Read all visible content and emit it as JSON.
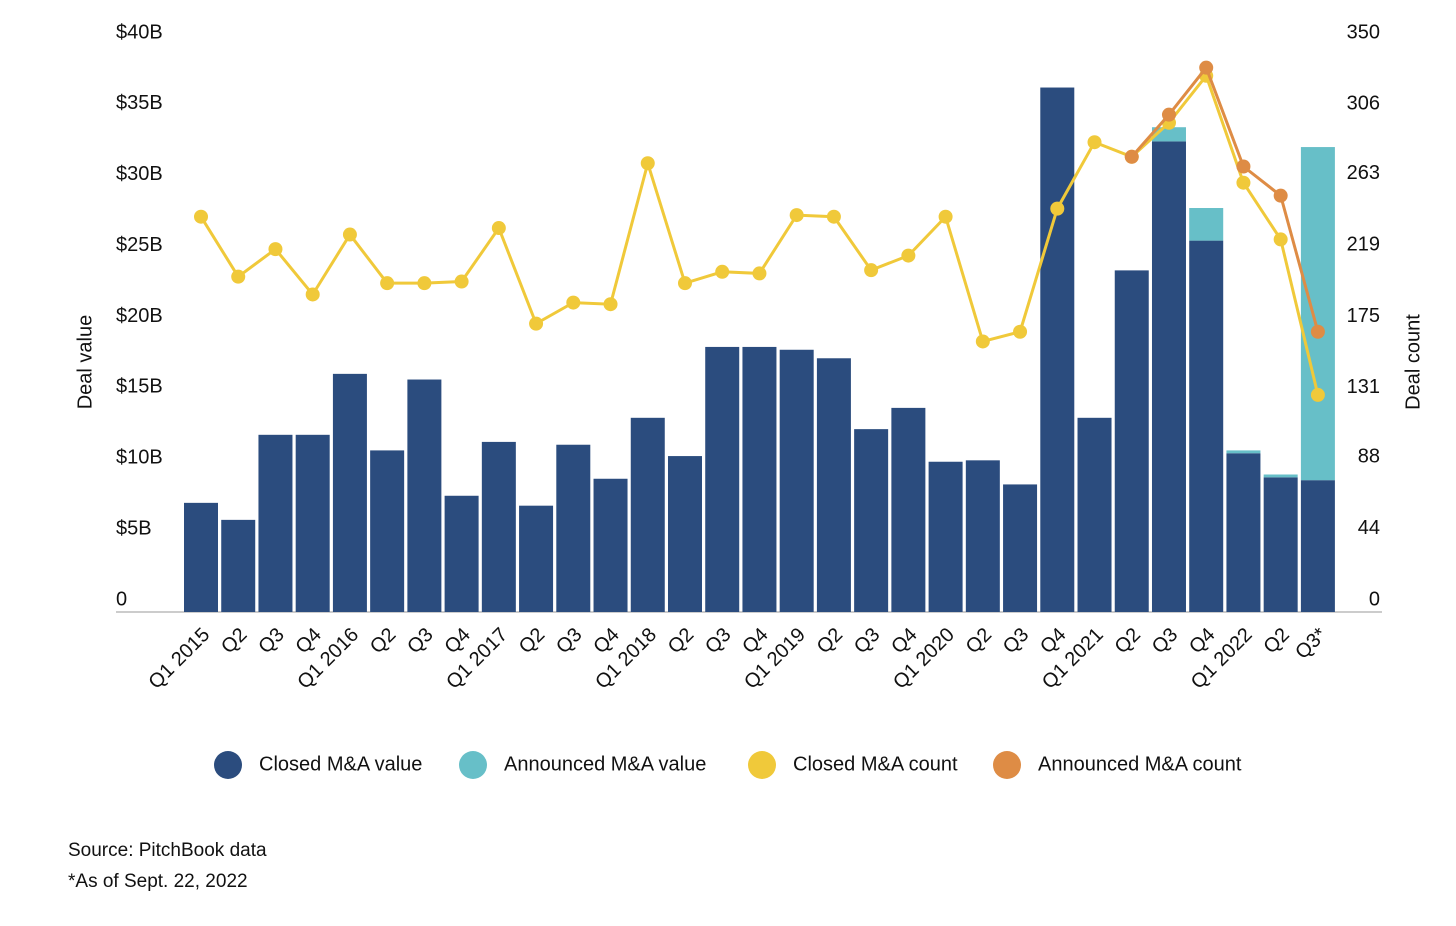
{
  "chart_data": {
    "type": "bar-line",
    "categories": [
      "Q1 2015",
      "Q2",
      "Q3",
      "Q4",
      "Q1 2016",
      "Q2",
      "Q3",
      "Q4",
      "Q1 2017",
      "Q2",
      "Q3",
      "Q4",
      "Q1 2018",
      "Q2",
      "Q3",
      "Q4",
      "Q1 2019",
      "Q2",
      "Q3",
      "Q4",
      "Q1 2020",
      "Q2",
      "Q3",
      "Q4",
      "Q1 2021",
      "Q2",
      "Q3",
      "Q4",
      "Q1 2022",
      "Q2",
      "Q3*"
    ],
    "series": [
      {
        "name": "Closed M&A value",
        "type": "bar",
        "color": "#2b4c7e",
        "values": [
          7.7,
          6.5,
          12.5,
          12.5,
          16.8,
          11.4,
          16.4,
          8.2,
          12.0,
          7.5,
          11.8,
          9.4,
          13.7,
          11.0,
          18.7,
          18.7,
          18.5,
          17.9,
          12.9,
          14.4,
          10.6,
          10.7,
          9.0,
          37.0,
          13.7,
          24.1,
          33.2,
          26.2,
          11.2,
          9.5,
          9.3
        ]
      },
      {
        "name": "Announced M&A value",
        "type": "bar",
        "color": "#67bfc8",
        "values": [
          null,
          null,
          null,
          null,
          null,
          null,
          null,
          null,
          null,
          null,
          null,
          null,
          null,
          null,
          null,
          null,
          null,
          null,
          null,
          null,
          null,
          null,
          null,
          null,
          null,
          null,
          1.0,
          2.3,
          0.2,
          0.2,
          23.5
        ]
      },
      {
        "name": "Closed M&A count",
        "type": "line",
        "axis": "y2",
        "color": "#f0c93a",
        "values": [
          244,
          207,
          224,
          196,
          233,
          203,
          203,
          204,
          237,
          178,
          191,
          190,
          277,
          203,
          210,
          209,
          245,
          244,
          211,
          220,
          244,
          167,
          173,
          249,
          290,
          281,
          302,
          331,
          265,
          230,
          134
        ]
      },
      {
        "name": "Announced M&A count",
        "type": "line",
        "axis": "y2",
        "color": "#de8c45",
        "values": [
          null,
          null,
          null,
          null,
          null,
          null,
          null,
          null,
          null,
          null,
          null,
          null,
          null,
          null,
          null,
          null,
          null,
          null,
          null,
          null,
          null,
          null,
          null,
          null,
          null,
          281,
          307,
          336,
          275,
          257,
          173
        ]
      }
    ],
    "ylabel": "Deal value",
    "y2label": "Deal count",
    "ylim": [
      0,
      40
    ],
    "yticks": [
      0,
      {
        "value": 5,
        "label": "$5B"
      },
      {
        "value": 10,
        "label": "$10B"
      },
      {
        "value": 15,
        "label": "$15B"
      },
      {
        "value": 20,
        "label": "$20B"
      },
      {
        "value": 25,
        "label": "$25B"
      },
      {
        "value": 30,
        "label": "$30B"
      },
      {
        "value": 35,
        "label": "$35B"
      },
      {
        "value": 40,
        "label": "$40B"
      }
    ],
    "y2lim": [
      0,
      350
    ],
    "y2ticks": [
      0,
      44,
      88,
      131,
      175,
      219,
      263,
      306,
      350
    ],
    "notes": [
      "Source: PitchBook data",
      "*As of Sept. 22, 2022"
    ]
  }
}
